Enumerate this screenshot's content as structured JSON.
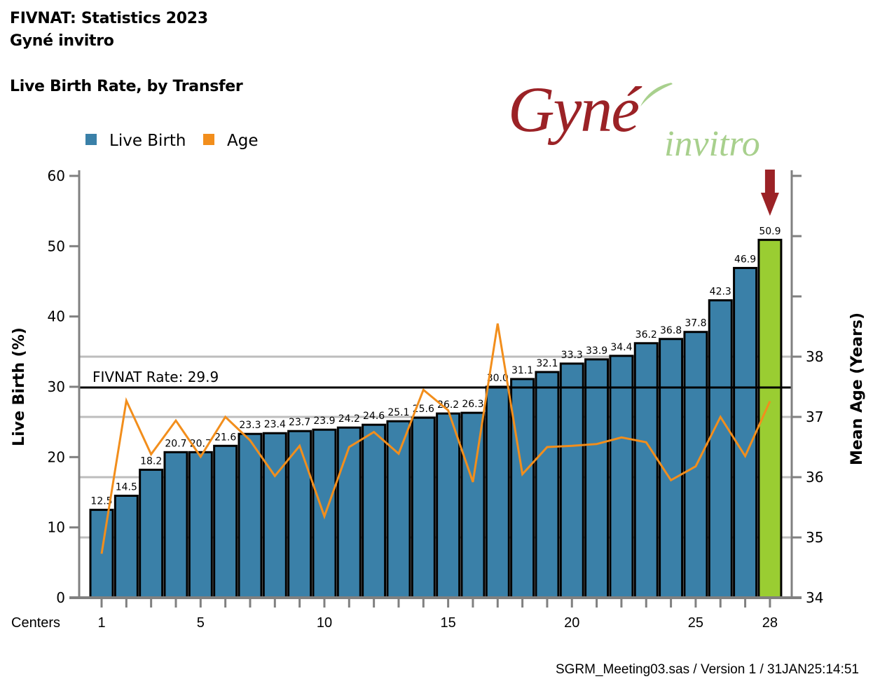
{
  "header": {
    "title_line1": "FIVNAT: Statistics 2023",
    "title_line2": "Gyné invitro",
    "subtitle": "Live Birth Rate, by Transfer"
  },
  "logo": {
    "main": "Gyné",
    "sub": "invitro",
    "main_color": "#9b2226",
    "sub_color": "#a8d08d"
  },
  "footer": {
    "text": "SGRM_Meeting03.sas / Version 1 / 31JAN25:14:51"
  },
  "chart_data": {
    "type": "bar",
    "title": "Live Birth Rate, by Transfer",
    "xlabel": "Centers",
    "ylabel": "Live Birth (%)",
    "y2label": "Mean Age (Years)",
    "ylim": [
      0,
      60
    ],
    "y2lim": [
      34,
      41
    ],
    "yticks": [
      0,
      10,
      20,
      30,
      40,
      50,
      60
    ],
    "y2ticks": [
      34,
      35,
      36,
      37,
      38,
      39,
      40,
      41
    ],
    "y2tick_labels": [
      "34",
      "35",
      "36",
      "37",
      "38",
      "",
      "",
      ""
    ],
    "xtick_labels": [
      {
        "center": 1,
        "label": "1"
      },
      {
        "center": 5,
        "label": "5"
      },
      {
        "center": 10,
        "label": "10"
      },
      {
        "center": 15,
        "label": "15"
      },
      {
        "center": 20,
        "label": "20"
      },
      {
        "center": 25,
        "label": "25"
      },
      {
        "center": 28,
        "label": "28"
      }
    ],
    "grid": "horizontal (right-axis ticks)",
    "legend": {
      "placement": "top-left",
      "entries": [
        {
          "name": "Live Birth",
          "color": "#3a80a8"
        },
        {
          "name": "Age",
          "color": "#f28e1c"
        }
      ]
    },
    "categories": [
      1,
      2,
      3,
      4,
      5,
      6,
      7,
      8,
      9,
      10,
      11,
      12,
      13,
      14,
      15,
      16,
      17,
      18,
      19,
      20,
      21,
      22,
      23,
      24,
      25,
      26,
      27,
      28
    ],
    "series": [
      {
        "name": "Live Birth",
        "type": "bar",
        "axis": "left",
        "color": "#3a80a8",
        "highlight_color": "#9acd32",
        "highlight_index": 27,
        "values": [
          12.5,
          14.5,
          18.2,
          20.7,
          20.7,
          21.6,
          23.3,
          23.4,
          23.7,
          23.9,
          24.2,
          24.6,
          25.1,
          25.6,
          26.2,
          26.3,
          30.0,
          31.1,
          32.1,
          33.3,
          33.9,
          34.4,
          36.2,
          36.8,
          37.8,
          42.3,
          46.9,
          50.9
        ],
        "labels": [
          "12.5",
          "14.5",
          "18.2",
          "20.7",
          "20.7",
          "21.6",
          "23.3",
          "23.4",
          "23.7",
          "23.9",
          "24.2",
          "24.6",
          "25.1",
          "25.6",
          "26.2",
          "26.3",
          "30.0",
          "31.1",
          "32.1",
          "33.3",
          "33.9",
          "34.4",
          "36.2",
          "36.8",
          "37.8",
          "42.3",
          "46.9",
          "50.9"
        ]
      },
      {
        "name": "Age",
        "type": "line",
        "axis": "right",
        "color": "#f28e1c",
        "values": [
          34.73,
          37.27,
          36.38,
          36.94,
          36.34,
          37.0,
          36.61,
          36.02,
          36.52,
          35.35,
          36.5,
          36.75,
          36.39,
          37.45,
          37.11,
          35.92,
          38.55,
          36.05,
          36.5,
          36.52,
          36.55,
          36.66,
          36.58,
          35.95,
          36.18,
          37.0,
          36.35,
          37.26
        ]
      }
    ],
    "reference_line": {
      "label": "FIVNAT Rate: 29.9",
      "value": 29.9,
      "color": "#000000"
    },
    "annotation": {
      "type": "arrow-down",
      "target_center": 28,
      "color": "#9b2226"
    }
  }
}
